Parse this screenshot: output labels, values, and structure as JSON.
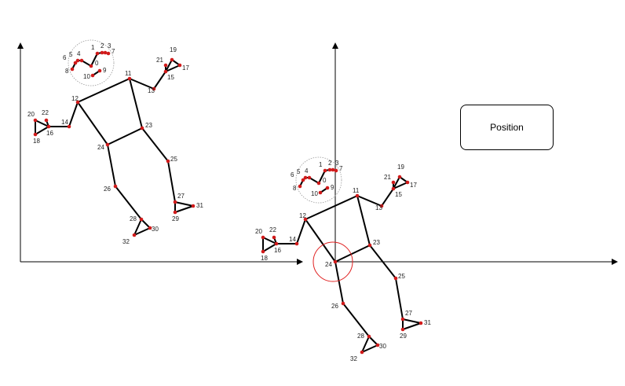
{
  "position_label": "Position",
  "colors": {
    "joint": "#d11a1a",
    "bone": "#000000",
    "highlight": "#e02020",
    "head_outline": "#999999"
  },
  "joints": [
    "0",
    "1",
    "2",
    "3",
    "4",
    "5",
    "6",
    "7",
    "8",
    "9",
    "10",
    "11",
    "12",
    "13",
    "14",
    "15",
    "16",
    "17",
    "18",
    "19",
    "20",
    "21",
    "22",
    "23",
    "24",
    "25",
    "26",
    "27",
    "28",
    "29",
    "30",
    "31",
    "32"
  ],
  "highlighted_joint": "24"
}
